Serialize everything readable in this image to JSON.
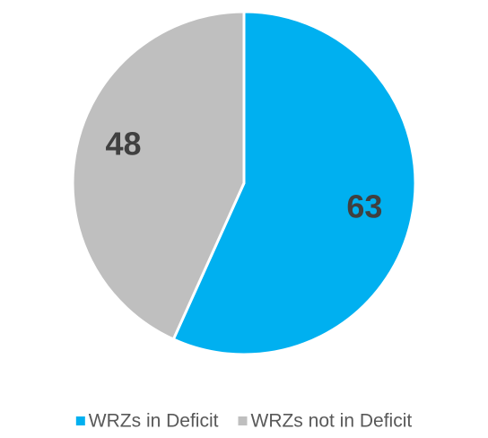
{
  "chart_data": {
    "type": "pie",
    "categories": [
      "WRZs in Deficit",
      "WRZs not in Deficit"
    ],
    "values": [
      63,
      48
    ],
    "colors": [
      "#00b0f0",
      "#bfbfbf"
    ],
    "legend": "bottom"
  }
}
